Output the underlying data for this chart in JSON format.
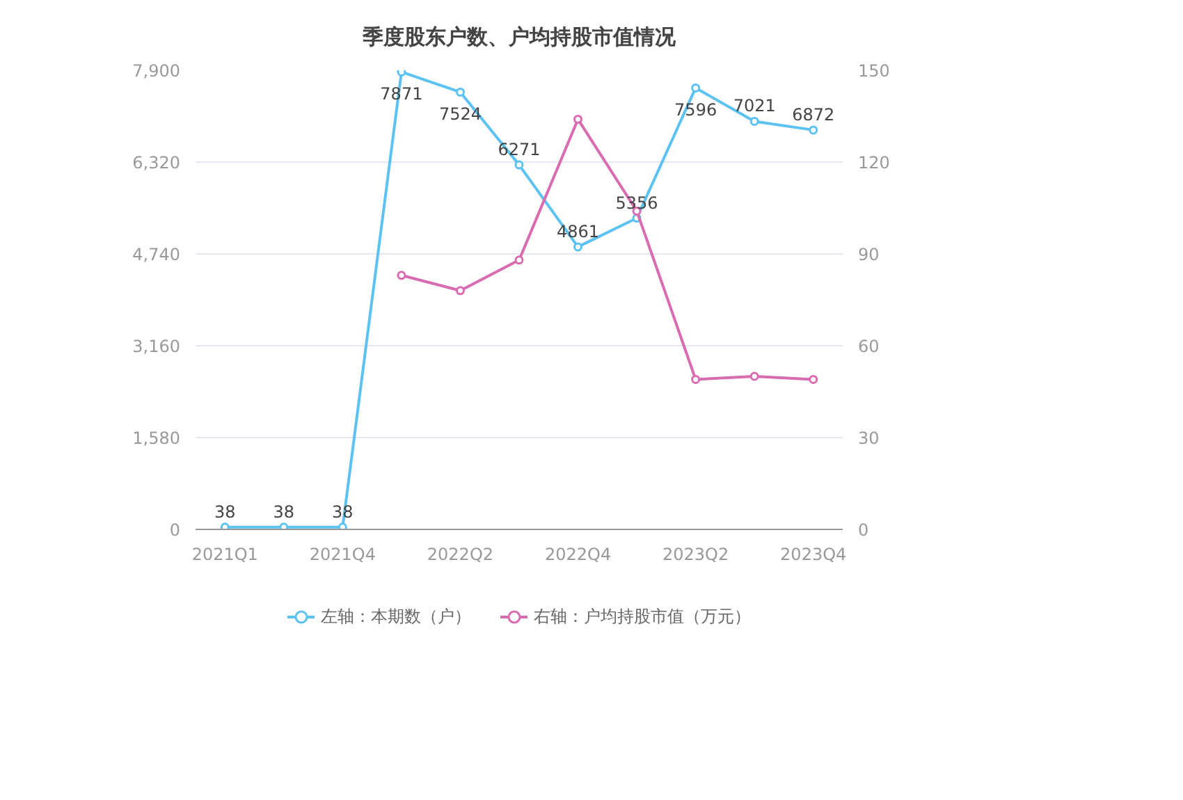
{
  "chart_data": {
    "type": "line",
    "title": "季度股东户数、户均持股市值情况",
    "categories": [
      "2021Q1",
      null,
      "2021Q4",
      null,
      "2022Q2",
      null,
      "2022Q4",
      null,
      "2023Q2",
      null,
      "2023Q4"
    ],
    "series": [
      {
        "name": "左轴：本期数（户）",
        "color": "#5bc2f2",
        "values": [
          38,
          38,
          38,
          7871,
          7524,
          6271,
          4861,
          5356,
          7596,
          7021,
          6872
        ],
        "value_labels": [
          "38",
          "38",
          "38",
          "7871",
          "7524",
          "6271",
          "4861",
          "5356",
          "7596",
          "7021",
          "6872"
        ]
      },
      {
        "name": "右轴：户均持股市值（万元）",
        "color": "#d96bb0",
        "axis": "y2",
        "values": [
          null,
          null,
          null,
          83,
          78,
          88,
          134,
          104,
          49,
          50,
          49
        ]
      }
    ],
    "ylim": [
      0,
      7900
    ],
    "yticks": [
      0,
      {
        "value": 1580,
        "label": "1,580"
      },
      {
        "value": 3160,
        "label": "3,160"
      },
      {
        "value": 4740,
        "label": "4,740"
      },
      {
        "value": 6320,
        "label": "6,320"
      },
      {
        "value": 7900,
        "label": "7,900"
      }
    ],
    "y2lim": [
      0,
      150
    ],
    "y2ticks": [
      0,
      30,
      60,
      90,
      120,
      150
    ],
    "grid": "y",
    "legend": "bottom",
    "marker": "circle",
    "line_style": "solid"
  }
}
